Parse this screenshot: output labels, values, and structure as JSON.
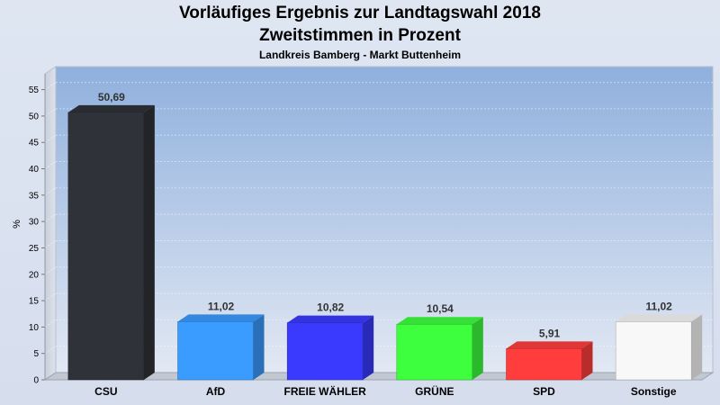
{
  "chart_data": {
    "type": "bar",
    "title": "Vorläufiges Ergebnis zur Landtagswahl 2018",
    "subtitle": "Zweitstimmen in Prozent",
    "subsubtitle": "Landkreis Bamberg - Markt Buttenheim",
    "ylabel": "%",
    "xlabel": "",
    "ylim": [
      0,
      58
    ],
    "yticks": [
      0,
      5,
      10,
      15,
      20,
      25,
      30,
      35,
      40,
      45,
      50,
      55
    ],
    "grid": true,
    "categories": [
      "CSU",
      "AfD",
      "FREIE WÄHLER",
      "GRÜNE",
      "SPD",
      "Sonstige"
    ],
    "values": [
      50.69,
      11.02,
      10.82,
      10.54,
      5.91,
      11.02
    ],
    "value_labels": [
      "50,69",
      "11,02",
      "10,82",
      "10,54",
      "5,91",
      "11,02"
    ],
    "colors": [
      "#2f3238",
      "#3a9cff",
      "#3a3aff",
      "#3dff3d",
      "#ff3d3d",
      "#f8f8f8"
    ],
    "background_gradient": [
      "#8fb0dd",
      "#e2e8f3"
    ]
  }
}
